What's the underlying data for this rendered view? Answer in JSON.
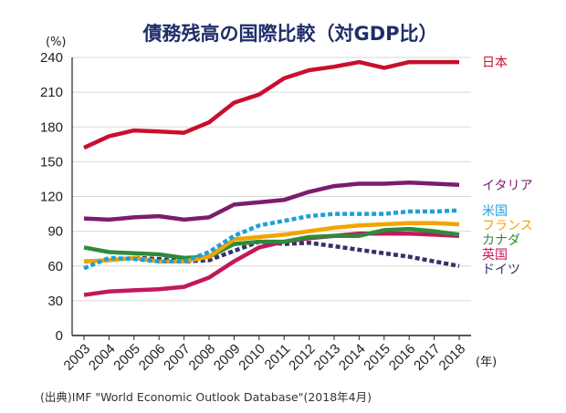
{
  "chart_data": {
    "type": "line",
    "title": "債務残高の国際比較（対GDP比）",
    "ylabel": "(%)",
    "xlabel": "(年)",
    "ylim": [
      0,
      240
    ],
    "yticks": [
      0,
      30,
      60,
      90,
      120,
      150,
      180,
      210,
      240
    ],
    "categories": [
      "2003",
      "2004",
      "2005",
      "2006",
      "2007",
      "2008",
      "2009",
      "2010",
      "2011",
      "2012",
      "2013",
      "2014",
      "2015",
      "2016",
      "2017",
      "2018"
    ],
    "series": [
      {
        "name": "日本",
        "color": "#c8102e",
        "dash": "solid",
        "values": [
          162,
          172,
          177,
          176,
          175,
          184,
          201,
          208,
          222,
          229,
          232,
          236,
          231,
          236,
          236,
          236
        ]
      },
      {
        "name": "イタリア",
        "color": "#7b1c6e",
        "dash": "solid",
        "values": [
          101,
          100,
          102,
          103,
          100,
          102,
          113,
          115,
          117,
          124,
          129,
          131,
          131,
          132,
          131,
          130
        ]
      },
      {
        "name": "米国",
        "color": "#1ea0d6",
        "dash": "dotted",
        "values": [
          58,
          67,
          66,
          64,
          64,
          72,
          86,
          95,
          99,
          103,
          105,
          105,
          105,
          107,
          107,
          108
        ]
      },
      {
        "name": "フランス",
        "color": "#f0a500",
        "dash": "solid",
        "values": [
          64,
          65,
          67,
          64,
          64,
          68,
          83,
          85,
          87,
          90,
          93,
          95,
          96,
          97,
          97,
          96
        ]
      },
      {
        "name": "カナダ",
        "color": "#2e8b3a",
        "dash": "solid",
        "values": [
          76,
          72,
          71,
          70,
          67,
          68,
          79,
          81,
          81,
          85,
          86,
          86,
          91,
          92,
          90,
          87
        ]
      },
      {
        "name": "英国",
        "color": "#c2185b",
        "dash": "solid",
        "values": [
          35,
          38,
          39,
          40,
          42,
          50,
          64,
          76,
          81,
          84,
          86,
          88,
          88,
          88,
          87,
          86
        ]
      },
      {
        "name": "ドイツ",
        "color": "#3a2f6b",
        "dash": "dotted",
        "values": [
          64,
          65,
          67,
          66,
          64,
          65,
          73,
          81,
          79,
          80,
          77,
          74,
          71,
          68,
          64,
          60
        ]
      }
    ]
  },
  "source": "(出典)IMF \"World Economic Outlook Database\"(2018年4月)"
}
